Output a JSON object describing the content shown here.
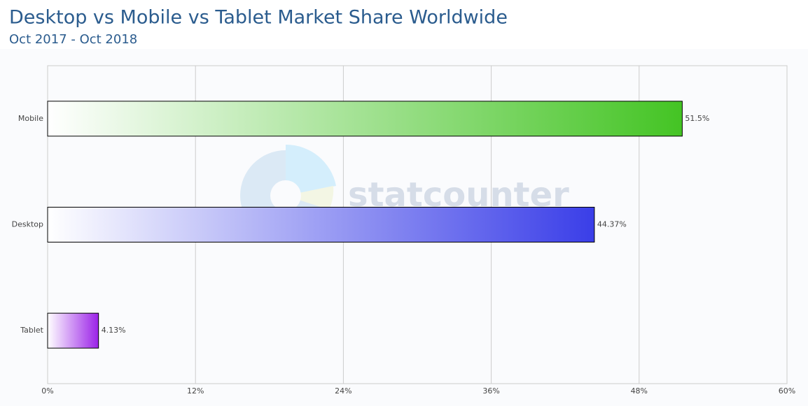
{
  "chart_data": {
    "type": "hbar",
    "title": "Desktop vs Mobile vs Tablet Market Share Worldwide",
    "subtitle": "Oct 2017 - Oct 2018",
    "watermark": "statcounter",
    "categories": [
      "Mobile",
      "Desktop",
      "Tablet"
    ],
    "values": [
      51.5,
      44.37,
      4.13
    ],
    "value_labels": [
      "51.5%",
      "44.37%",
      "4.13%"
    ],
    "colors": [
      "#44c424",
      "#3a3ee8",
      "#9b22e8"
    ],
    "xlim": [
      0,
      60
    ],
    "xticks": [
      {
        "value": 0,
        "label": "0%"
      },
      {
        "value": 12,
        "label": "12%"
      },
      {
        "value": 24,
        "label": "24%"
      },
      {
        "value": 36,
        "label": "36%"
      },
      {
        "value": 48,
        "label": "48%"
      },
      {
        "value": 60,
        "label": "60%"
      }
    ],
    "grid": true
  }
}
